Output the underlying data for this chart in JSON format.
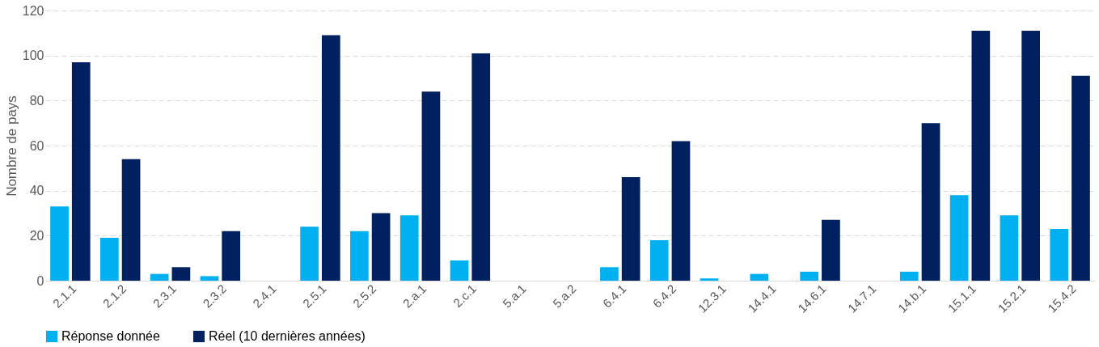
{
  "chart_data": {
    "type": "bar",
    "ylabel": "Nombre de pays",
    "categories": [
      "2.1.1",
      "2.1.2",
      "2.3.1",
      "2.3.2",
      "2.4.1",
      "2.5.1",
      "2.5.2",
      "2.a.1",
      "2.c.1",
      "5.a.1",
      "5.a.2",
      "6.4.1",
      "6.4.2",
      "12.3.1",
      "14.4.1",
      "14.6.1",
      "14.7.1",
      "14.b.1",
      "15.1.1",
      "15.2.1",
      "15.4.2"
    ],
    "series": [
      {
        "name": "Réponse donnée",
        "color": "#00b0f0",
        "values": [
          33,
          19,
          3,
          2,
          0,
          24,
          22,
          29,
          9,
          0,
          0,
          6,
          18,
          1,
          3,
          4,
          0,
          4,
          38,
          29,
          23
        ]
      },
      {
        "name": "Réel (10 dernières années)",
        "color": "#002060",
        "values": [
          97,
          54,
          6,
          22,
          0,
          109,
          30,
          84,
          101,
          0,
          0,
          46,
          62,
          0,
          0,
          27,
          0,
          70,
          111,
          111,
          91
        ]
      }
    ],
    "ylim": [
      0,
      120
    ],
    "yticks": [
      0,
      20,
      40,
      60,
      80,
      100,
      120
    ],
    "grid": "y",
    "legend": "bottom"
  }
}
